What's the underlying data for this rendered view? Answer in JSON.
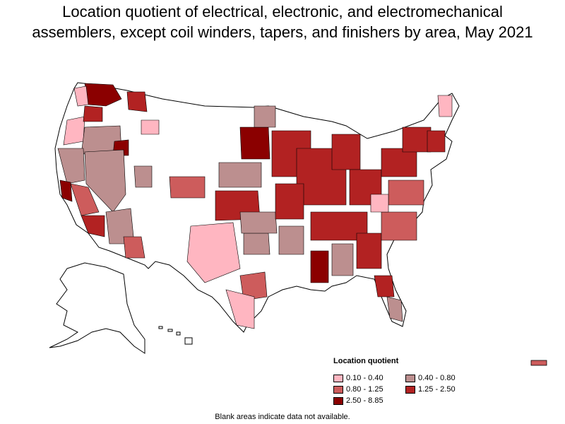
{
  "title": {
    "line1": "Location quotient of electrical, electronic, and electromechanical",
    "line2": "assemblers, except coil winders, tapers, and finishers by area, May 2021"
  },
  "legend": {
    "heading": "Location quotient",
    "items": [
      {
        "label": "0.10 - 0.40",
        "color": "#ffb6c1"
      },
      {
        "label": "0.40 - 0.80",
        "color": "#bc8f8f"
      },
      {
        "label": "0.80 - 1.25",
        "color": "#cd5c5c"
      },
      {
        "label": "1.25 - 2.50",
        "color": "#b22222"
      },
      {
        "label": "2.50 - 8.85",
        "color": "#8b0000"
      }
    ]
  },
  "footnote": "Blank areas indicate data not available.",
  "colors": {
    "no_data": "#ffffff",
    "border": "#000000"
  }
}
